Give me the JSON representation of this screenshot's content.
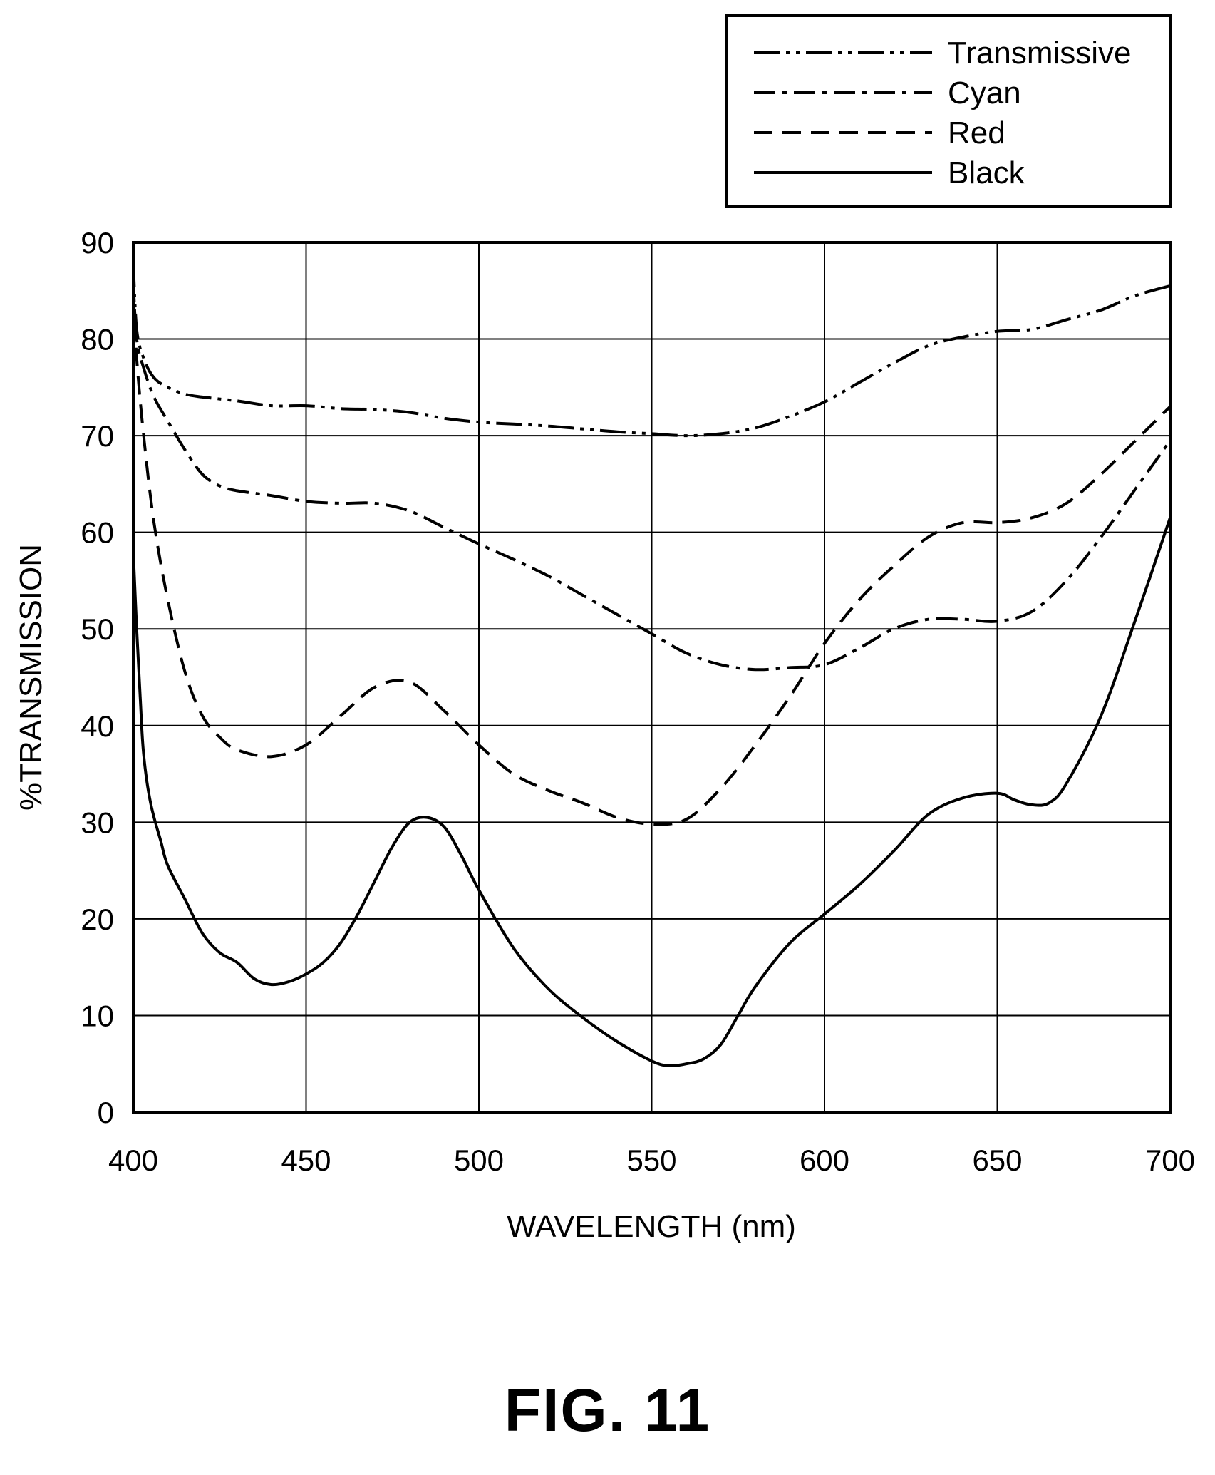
{
  "figure_label": "FIG. 11",
  "chart_data": {
    "type": "line",
    "xlabel": "WAVELENGTH (nm)",
    "ylabel": "%TRANSMISSION",
    "xlim": [
      400,
      700
    ],
    "ylim": [
      0,
      90
    ],
    "xticks": [
      400,
      450,
      500,
      550,
      600,
      650,
      700
    ],
    "yticks": [
      0,
      10,
      20,
      30,
      40,
      50,
      60,
      70,
      80,
      90
    ],
    "grid": true,
    "legend_position": "top-right",
    "series": [
      {
        "name": "Transmissive",
        "line_style": "dash-dot-dot",
        "x": [
          400,
          401,
          403,
          406,
          410,
          415,
          420,
          430,
          440,
          450,
          460,
          470,
          480,
          490,
          500,
          510,
          520,
          530,
          540,
          550,
          560,
          570,
          580,
          590,
          600,
          610,
          620,
          630,
          640,
          650,
          660,
          670,
          680,
          690,
          700
        ],
        "y": [
          88,
          81,
          78,
          76,
          75,
          74.3,
          74,
          73.6,
          73.1,
          73.1,
          72.8,
          72.7,
          72.4,
          71.8,
          71.4,
          71.2,
          71.0,
          70.7,
          70.4,
          70.2,
          70.0,
          70.2,
          70.8,
          72.0,
          73.5,
          75.5,
          77.5,
          79.3,
          80.2,
          80.8,
          81.0,
          82.0,
          83.0,
          84.5,
          85.5
        ]
      },
      {
        "name": "Cyan",
        "line_style": "dash-dot",
        "x": [
          400,
          401,
          403,
          406,
          410,
          415,
          420,
          425,
          430,
          440,
          450,
          460,
          470,
          480,
          490,
          500,
          510,
          520,
          530,
          540,
          550,
          560,
          570,
          580,
          590,
          600,
          610,
          620,
          630,
          640,
          650,
          660,
          670,
          680,
          690,
          700
        ],
        "y": [
          86,
          80,
          77,
          74,
          71.5,
          68.5,
          66,
          64.8,
          64.3,
          63.8,
          63.2,
          63.0,
          63.0,
          62.2,
          60.5,
          58.8,
          57.2,
          55.5,
          53.5,
          51.5,
          49.5,
          47.5,
          46.3,
          45.8,
          46.0,
          46.3,
          48.0,
          50.0,
          51.0,
          51.0,
          50.8,
          51.8,
          55.0,
          59.5,
          64.5,
          69.5
        ]
      },
      {
        "name": "Red",
        "line_style": "dashed",
        "x": [
          400,
          401,
          403,
          406,
          410,
          415,
          420,
          425,
          430,
          440,
          450,
          460,
          470,
          480,
          490,
          500,
          510,
          520,
          530,
          540,
          550,
          560,
          570,
          580,
          590,
          600,
          610,
          620,
          630,
          640,
          650,
          660,
          670,
          680,
          690,
          700
        ],
        "y": [
          85,
          78,
          70,
          61,
          53,
          45.5,
          41,
          38.8,
          37.5,
          36.8,
          38.0,
          41.0,
          44.0,
          44.5,
          41.5,
          38.0,
          35.0,
          33.3,
          32.0,
          30.5,
          29.8,
          30.3,
          33.5,
          38.0,
          43.0,
          48.5,
          53.0,
          56.5,
          59.5,
          61.0,
          61.0,
          61.5,
          63.0,
          66.0,
          69.5,
          73.0
        ]
      },
      {
        "name": "Black",
        "line_style": "solid",
        "x": [
          400,
          401,
          402,
          403,
          405,
          408,
          410,
          415,
          420,
          425,
          430,
          435,
          440,
          445,
          450,
          455,
          460,
          465,
          470,
          475,
          480,
          485,
          490,
          495,
          500,
          510,
          520,
          530,
          540,
          550,
          555,
          560,
          565,
          570,
          575,
          580,
          590,
          600,
          610,
          620,
          630,
          640,
          650,
          655,
          660,
          665,
          670,
          680,
          690,
          700
        ],
        "y": [
          58,
          50,
          43,
          37,
          32,
          28,
          25.5,
          22,
          18.5,
          16.5,
          15.5,
          13.8,
          13.2,
          13.5,
          14.3,
          15.5,
          17.5,
          20.5,
          24.0,
          27.5,
          30.0,
          30.5,
          29.5,
          26.5,
          23.0,
          17.0,
          12.8,
          9.8,
          7.3,
          5.3,
          4.8,
          5.0,
          5.5,
          7.0,
          10.0,
          13.0,
          17.5,
          20.5,
          23.5,
          27.0,
          30.8,
          32.5,
          33.0,
          32.3,
          31.8,
          32.0,
          34.0,
          41.0,
          51.0,
          61.5
        ]
      }
    ]
  }
}
